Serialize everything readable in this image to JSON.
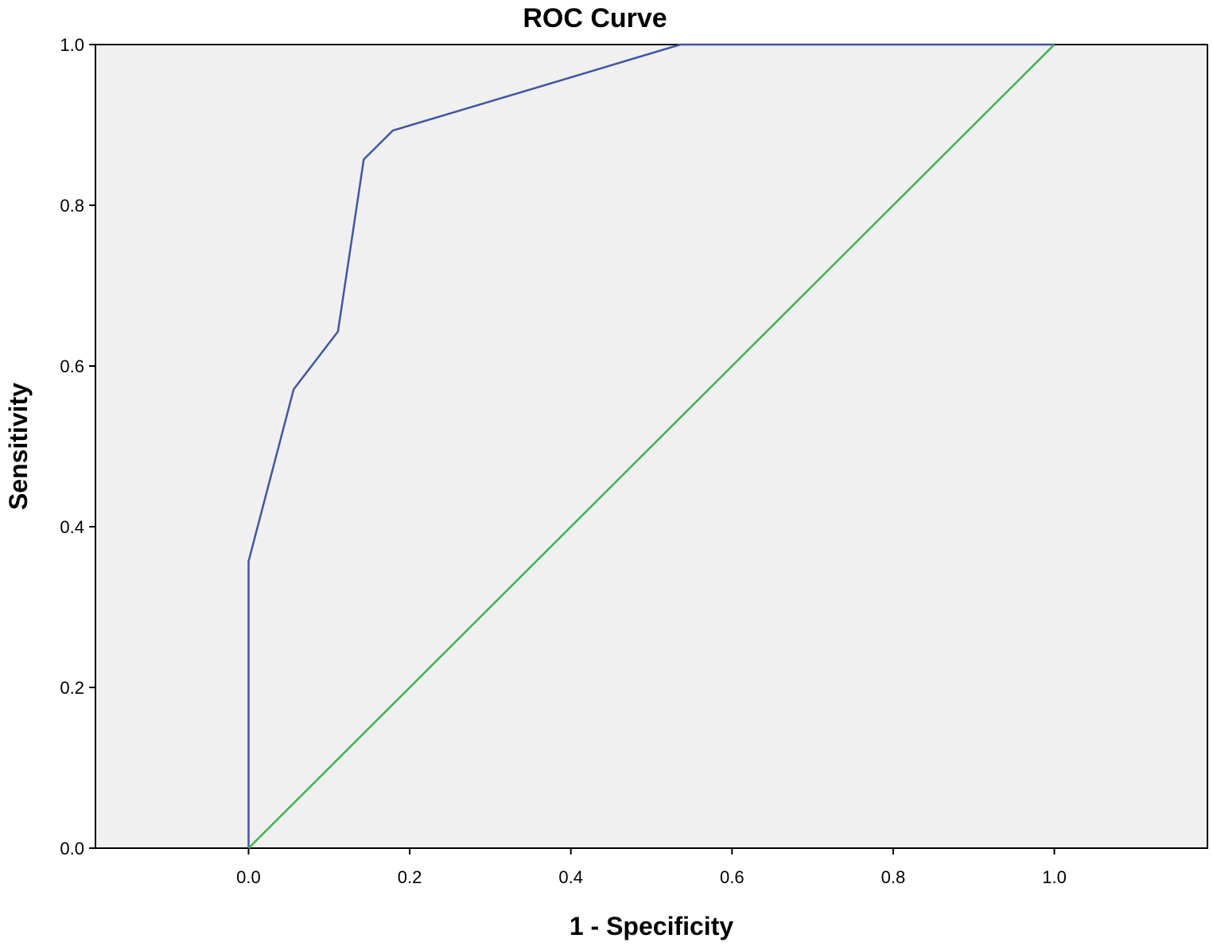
{
  "chart_data": {
    "type": "line",
    "title": "ROC Curve",
    "xlabel": "1 - Specificity",
    "ylabel": "Sensitivity",
    "xlim": [
      -0.19,
      1.19
    ],
    "ylim": [
      0,
      1
    ],
    "x_ticks": [
      "0.0",
      "0.2",
      "0.4",
      "0.6",
      "0.8",
      "1.0"
    ],
    "y_ticks": [
      "0.0",
      "0.2",
      "0.4",
      "0.6",
      "0.8",
      "1.0"
    ],
    "grid": false,
    "legend": "none",
    "plot_background": "#f0f0f0",
    "series": [
      {
        "color": "#3f56a8",
        "x": [
          0.0,
          0.0,
          0.056,
          0.111,
          0.143,
          0.179,
          0.536,
          1.0
        ],
        "y": [
          0.0,
          0.357,
          0.571,
          0.643,
          0.857,
          0.893,
          1.0,
          1.0
        ]
      },
      {
        "color": "#3cb44b",
        "x": [
          0.0,
          1.0
        ],
        "y": [
          0.0,
          1.0
        ]
      }
    ]
  }
}
